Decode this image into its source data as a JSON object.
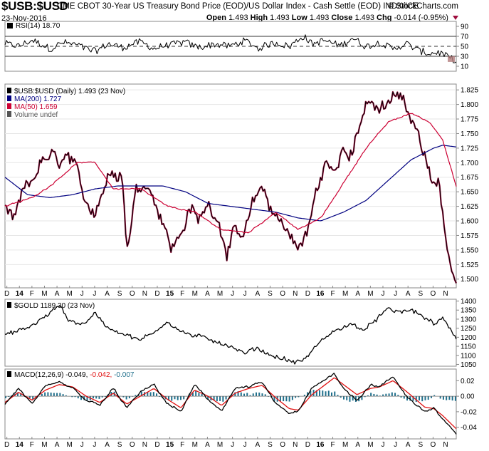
{
  "header": {
    "symbol": "$USB:$USD",
    "description": "CME CBOT 30-Year US Treasury Bond Price (EOD)/US Dollar Index - Cash Settle (EOD) INDX/ICE",
    "watermark": "© StockCharts.com",
    "date": "23-Nov-2016",
    "ohlc": {
      "open_label": "Open",
      "open": "1.493",
      "high_label": "High",
      "high": "1.493",
      "low_label": "Low",
      "low": "1.493",
      "close_label": "Close",
      "close": "1.493",
      "chg_label": "Chg",
      "chg": "-0.014 (-0.95%)"
    }
  },
  "colors": {
    "price": "#000000",
    "ma50": "#cc0033",
    "ma200": "#000080",
    "fill_down": "#a01040",
    "gold": "#000000",
    "macd": "#000000",
    "signal": "#e01010",
    "hist": "#1f6f8b",
    "rsi": "#000000",
    "rsi_last": "#a01040"
  },
  "chart_data": [
    {
      "type": "line",
      "panel": "rsi",
      "legend": "RSI(14) 18.70",
      "ylim": [
        0,
        100
      ],
      "yticks": [
        "90",
        "70",
        "50",
        "30",
        "10"
      ],
      "reference_lines": [
        70,
        50,
        30
      ],
      "keypoints": [
        [
          0,
          55
        ],
        [
          3,
          50
        ],
        [
          6,
          62
        ],
        [
          10,
          45
        ],
        [
          13,
          58
        ],
        [
          16,
          52
        ],
        [
          20,
          40
        ],
        [
          23,
          55
        ],
        [
          26,
          48
        ],
        [
          30,
          60
        ],
        [
          33,
          45
        ],
        [
          36,
          52
        ],
        [
          40,
          58
        ],
        [
          43,
          47
        ],
        [
          46,
          55
        ],
        [
          50,
          50
        ],
        [
          53,
          62
        ],
        [
          56,
          45
        ],
        [
          60,
          58
        ],
        [
          63,
          50
        ],
        [
          66,
          72
        ],
        [
          68,
          55
        ],
        [
          71,
          62
        ],
        [
          74,
          50
        ],
        [
          77,
          67
        ],
        [
          80,
          48
        ],
        [
          83,
          58
        ],
        [
          86,
          45
        ],
        [
          89,
          55
        ],
        [
          92,
          40
        ],
        [
          94,
          35
        ],
        [
          96,
          38
        ],
        [
          98,
          30
        ],
        [
          100,
          18.7
        ]
      ],
      "last_value": 18.7
    },
    {
      "type": "line",
      "panel": "price",
      "legends": [
        "$USB:$USD (Daily) 1.493 (23 Nov)",
        "MA(200) 1.727",
        "MA(50) 1.659",
        "Volume undef"
      ],
      "ylim": [
        1.485,
        1.835
      ],
      "yticks": [
        "1.825",
        "1.800",
        "1.775",
        "1.750",
        "1.725",
        "1.700",
        "1.675",
        "1.650",
        "1.625",
        "1.600",
        "1.575",
        "1.550",
        "1.525",
        "1.500"
      ],
      "xticks": [
        "D",
        "14",
        "F",
        "M",
        "A",
        "M",
        "J",
        "J",
        "A",
        "S",
        "O",
        "N",
        "D",
        "15",
        "F",
        "M",
        "A",
        "M",
        "J",
        "J",
        "A",
        "S",
        "O",
        "N",
        "D",
        "16",
        "F",
        "M",
        "A",
        "M",
        "J",
        "J",
        "A",
        "S",
        "O",
        "N"
      ],
      "x_range": [
        "Dec 2013",
        "Nov 2016"
      ],
      "series": [
        {
          "name": "$USB:$USD",
          "keypoints": [
            [
              0,
              1.62
            ],
            [
              2,
              1.6
            ],
            [
              4,
              1.65
            ],
            [
              6,
              1.67
            ],
            [
              8,
              1.7
            ],
            [
              10,
              1.71
            ],
            [
              12,
              1.7
            ],
            [
              14,
              1.71
            ],
            [
              16,
              1.68
            ],
            [
              18,
              1.63
            ],
            [
              20,
              1.62
            ],
            [
              22,
              1.66
            ],
            [
              24,
              1.69
            ],
            [
              26,
              1.68
            ],
            [
              27,
              1.55
            ],
            [
              29,
              1.65
            ],
            [
              31,
              1.67
            ],
            [
              33,
              1.64
            ],
            [
              35,
              1.6
            ],
            [
              37,
              1.55
            ],
            [
              39,
              1.58
            ],
            [
              41,
              1.62
            ],
            [
              43,
              1.6
            ],
            [
              45,
              1.63
            ],
            [
              47,
              1.61
            ],
            [
              49,
              1.55
            ],
            [
              51,
              1.58
            ],
            [
              53,
              1.57
            ],
            [
              55,
              1.63
            ],
            [
              57,
              1.66
            ],
            [
              59,
              1.62
            ],
            [
              61,
              1.6
            ],
            [
              63,
              1.58
            ],
            [
              65,
              1.55
            ],
            [
              67,
              1.58
            ],
            [
              69,
              1.65
            ],
            [
              71,
              1.7
            ],
            [
              73,
              1.68
            ],
            [
              75,
              1.73
            ],
            [
              77,
              1.72
            ],
            [
              79,
              1.78
            ],
            [
              81,
              1.8
            ],
            [
              83,
              1.79
            ],
            [
              85,
              1.8
            ],
            [
              87,
              1.82
            ],
            [
              89,
              1.79
            ],
            [
              91,
              1.76
            ],
            [
              93,
              1.72
            ],
            [
              95,
              1.66
            ],
            [
              96,
              1.67
            ],
            [
              97,
              1.62
            ],
            [
              98,
              1.55
            ],
            [
              100,
              1.493
            ]
          ]
        },
        {
          "name": "MA(200)",
          "keypoints": [
            [
              0,
              1.675
            ],
            [
              5,
              1.645
            ],
            [
              10,
              1.64
            ],
            [
              15,
              1.645
            ],
            [
              20,
              1.655
            ],
            [
              25,
              1.66
            ],
            [
              30,
              1.66
            ],
            [
              35,
              1.66
            ],
            [
              40,
              1.65
            ],
            [
              45,
              1.63
            ],
            [
              50,
              1.625
            ],
            [
              55,
              1.62
            ],
            [
              60,
              1.615
            ],
            [
              65,
              1.605
            ],
            [
              70,
              1.6
            ],
            [
              75,
              1.615
            ],
            [
              80,
              1.635
            ],
            [
              85,
              1.67
            ],
            [
              90,
              1.705
            ],
            [
              95,
              1.725
            ],
            [
              97,
              1.73
            ],
            [
              100,
              1.727
            ]
          ]
        },
        {
          "name": "MA(50)",
          "keypoints": [
            [
              0,
              1.625
            ],
            [
              6,
              1.64
            ],
            [
              10,
              1.66
            ],
            [
              16,
              1.7
            ],
            [
              20,
              1.7
            ],
            [
              24,
              1.655
            ],
            [
              30,
              1.655
            ],
            [
              36,
              1.625
            ],
            [
              42,
              1.615
            ],
            [
              48,
              1.585
            ],
            [
              54,
              1.58
            ],
            [
              60,
              1.615
            ],
            [
              65,
              1.585
            ],
            [
              70,
              1.605
            ],
            [
              75,
              1.665
            ],
            [
              80,
              1.725
            ],
            [
              85,
              1.77
            ],
            [
              90,
              1.785
            ],
            [
              94,
              1.77
            ],
            [
              97,
              1.74
            ],
            [
              100,
              1.659
            ]
          ]
        }
      ]
    },
    {
      "type": "line",
      "panel": "gold",
      "legend": "$GOLD 1189.30 (23 Nov)",
      "ylim": [
        1040,
        1410
      ],
      "yticks": [
        "1400",
        "1350",
        "1300",
        "1250",
        "1200",
        "1150",
        "1100",
        "1050"
      ],
      "series": [
        {
          "name": "$GOLD",
          "keypoints": [
            [
              0,
              1210
            ],
            [
              5,
              1250
            ],
            [
              10,
              1330
            ],
            [
              12,
              1380
            ],
            [
              14,
              1300
            ],
            [
              17,
              1270
            ],
            [
              20,
              1330
            ],
            [
              23,
              1250
            ],
            [
              26,
              1225
            ],
            [
              30,
              1180
            ],
            [
              33,
              1230
            ],
            [
              36,
              1290
            ],
            [
              39,
              1230
            ],
            [
              43,
              1200
            ],
            [
              47,
              1180
            ],
            [
              50,
              1150
            ],
            [
              53,
              1110
            ],
            [
              56,
              1140
            ],
            [
              59,
              1100
            ],
            [
              62,
              1080
            ],
            [
              64,
              1060
            ],
            [
              66,
              1070
            ],
            [
              69,
              1150
            ],
            [
              71,
              1200
            ],
            [
              74,
              1250
            ],
            [
              77,
              1270
            ],
            [
              80,
              1240
            ],
            [
              83,
              1320
            ],
            [
              85,
              1350
            ],
            [
              87,
              1340
            ],
            [
              90,
              1350
            ],
            [
              93,
              1310
            ],
            [
              95,
              1270
            ],
            [
              97,
              1300
            ],
            [
              99,
              1240
            ],
            [
              100,
              1189.3
            ]
          ]
        }
      ]
    },
    {
      "type": "line",
      "panel": "macd",
      "legend_prefix": "MACD(12,26,9)",
      "legend_values": [
        "-0.049,",
        "-0.042,",
        "-0.007"
      ],
      "ylim": [
        -0.055,
        0.035
      ],
      "yticks": [
        "0.02",
        "0.00",
        "-0.02",
        "-0.04"
      ],
      "xticks": [
        "D",
        "14",
        "F",
        "M",
        "A",
        "M",
        "J",
        "J",
        "A",
        "S",
        "O",
        "N",
        "D",
        "15",
        "F",
        "M",
        "A",
        "M",
        "J",
        "J",
        "A",
        "S",
        "O",
        "N",
        "D",
        "16",
        "F",
        "M",
        "A",
        "M",
        "J",
        "J",
        "A",
        "S",
        "O",
        "N"
      ],
      "series": [
        {
          "name": "MACD",
          "keypoints": [
            [
              0,
              -0.01
            ],
            [
              3,
              0.01
            ],
            [
              6,
              -0.01
            ],
            [
              9,
              0.012
            ],
            [
              12,
              0.018
            ],
            [
              15,
              0.01
            ],
            [
              18,
              -0.005
            ],
            [
              21,
              -0.012
            ],
            [
              24,
              0.01
            ],
            [
              27,
              -0.015
            ],
            [
              30,
              0.005
            ],
            [
              33,
              0.015
            ],
            [
              36,
              -0.01
            ],
            [
              39,
              -0.02
            ],
            [
              42,
              0.015
            ],
            [
              45,
              -0.005
            ],
            [
              48,
              -0.018
            ],
            [
              51,
              0.01
            ],
            [
              54,
              0.012
            ],
            [
              57,
              0.018
            ],
            [
              60,
              -0.01
            ],
            [
              63,
              -0.022
            ],
            [
              65,
              -0.02
            ],
            [
              68,
              0.01
            ],
            [
              71,
              0.022
            ],
            [
              73,
              0.03
            ],
            [
              75,
              0.01
            ],
            [
              78,
              -0.005
            ],
            [
              81,
              0.015
            ],
            [
              83,
              0.012
            ],
            [
              86,
              0.025
            ],
            [
              89,
              0.0
            ],
            [
              91,
              -0.01
            ],
            [
              93,
              -0.02
            ],
            [
              95,
              -0.015
            ],
            [
              97,
              -0.03
            ],
            [
              100,
              -0.049
            ]
          ]
        },
        {
          "name": "Signal",
          "keypoints": [
            [
              0,
              -0.008
            ],
            [
              3,
              0.005
            ],
            [
              6,
              -0.005
            ],
            [
              9,
              0.008
            ],
            [
              12,
              0.015
            ],
            [
              15,
              0.012
            ],
            [
              18,
              0.0
            ],
            [
              21,
              -0.008
            ],
            [
              24,
              0.004
            ],
            [
              27,
              -0.01
            ],
            [
              30,
              0.0
            ],
            [
              33,
              0.01
            ],
            [
              36,
              -0.004
            ],
            [
              39,
              -0.015
            ],
            [
              42,
              0.008
            ],
            [
              45,
              0.0
            ],
            [
              48,
              -0.012
            ],
            [
              51,
              0.004
            ],
            [
              54,
              0.01
            ],
            [
              57,
              0.014
            ],
            [
              60,
              -0.002
            ],
            [
              63,
              -0.016
            ],
            [
              65,
              -0.018
            ],
            [
              68,
              0.002
            ],
            [
              71,
              0.015
            ],
            [
              73,
              0.024
            ],
            [
              75,
              0.015
            ],
            [
              78,
              0.002
            ],
            [
              81,
              0.01
            ],
            [
              83,
              0.012
            ],
            [
              86,
              0.02
            ],
            [
              89,
              0.006
            ],
            [
              91,
              -0.004
            ],
            [
              93,
              -0.014
            ],
            [
              95,
              -0.016
            ],
            [
              97,
              -0.025
            ],
            [
              100,
              -0.042
            ]
          ]
        }
      ]
    }
  ]
}
